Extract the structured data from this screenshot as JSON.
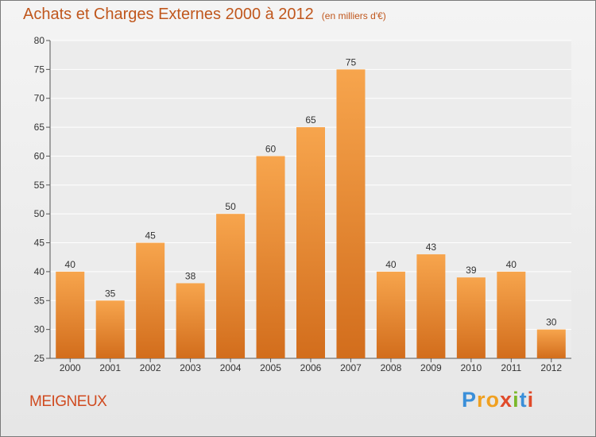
{
  "title": "Achats et Charges Externes 2000 à 2012",
  "subtitle": "(en milliers d'€)",
  "location": "MEIGNEUX",
  "logo": {
    "letters": [
      "P",
      "r",
      "o",
      "x",
      "i",
      "t",
      "i"
    ],
    "colors": [
      "#3a8fd9",
      "#f0a020",
      "#f0a020",
      "#e04a2a",
      "#7ab829",
      "#3a8fd9",
      "#e04a2a"
    ]
  },
  "chart_data": {
    "type": "bar",
    "categories": [
      "2000",
      "2001",
      "2002",
      "2003",
      "2004",
      "2005",
      "2006",
      "2007",
      "2008",
      "2009",
      "2010",
      "2011",
      "2012"
    ],
    "values": [
      40,
      35,
      45,
      38,
      50,
      60,
      65,
      75,
      40,
      43,
      39,
      40,
      30
    ],
    "data_labels": [
      "40",
      "35",
      "45",
      "38",
      "50",
      "60",
      "65",
      "75",
      "40",
      "43",
      "39",
      "40",
      "30"
    ],
    "title": "Achats et Charges Externes 2000 à 2012",
    "xlabel": "",
    "ylabel": "",
    "ylim": [
      25,
      80
    ],
    "yticks": [
      25,
      30,
      35,
      40,
      45,
      50,
      55,
      60,
      65,
      70,
      75,
      80
    ],
    "grid": true,
    "bar_color_top": "#f7a54d",
    "bar_color_bottom": "#d26d1c"
  }
}
